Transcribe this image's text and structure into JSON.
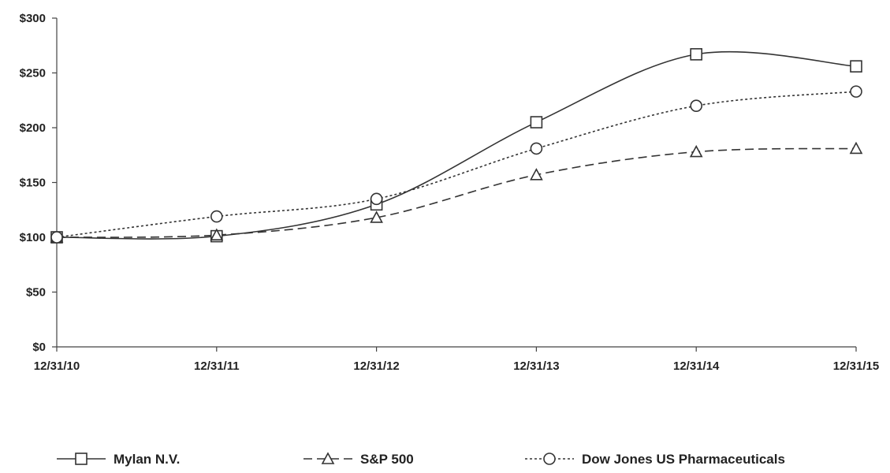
{
  "chart_data": {
    "type": "line",
    "categories": [
      "12/31/10",
      "12/31/11",
      "12/31/12",
      "12/31/13",
      "12/31/14",
      "12/31/15"
    ],
    "y_ticks": [
      "$0",
      "$50",
      "$100",
      "$150",
      "$200",
      "$250",
      "$300"
    ],
    "ylim": [
      0,
      300
    ],
    "grid": false,
    "legend": "bottom",
    "series": [
      {
        "name": "Mylan N.V.",
        "values": [
          100,
          101,
          130,
          205,
          267,
          256
        ],
        "marker": "square",
        "line_style": "solid",
        "color": "#333333"
      },
      {
        "name": "S&P 500",
        "values": [
          100,
          102,
          118,
          157,
          178,
          181
        ],
        "marker": "triangle",
        "line_style": "dashed",
        "color": "#333333"
      },
      {
        "name": "Dow Jones US Pharmaceuticals",
        "values": [
          100,
          119,
          135,
          181,
          220,
          233
        ],
        "marker": "circle",
        "line_style": "dotted",
        "color": "#333333"
      }
    ]
  }
}
